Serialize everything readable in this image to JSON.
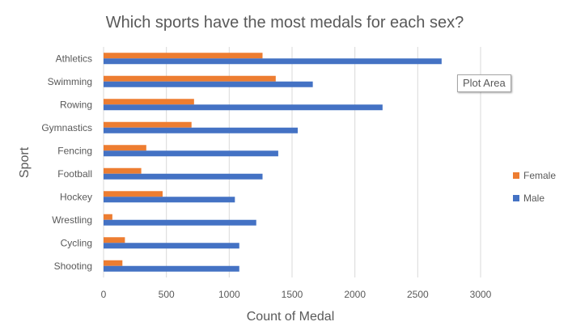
{
  "chart_data": {
    "type": "bar",
    "orientation": "horizontal",
    "title": "Which sports have the most medals for each sex?",
    "xlabel": "Count of Medal",
    "ylabel": "Sport",
    "categories": [
      "Athletics",
      "Swimming",
      "Rowing",
      "Gymnastics",
      "Fencing",
      "Football",
      "Hockey",
      "Wrestling",
      "Cycling",
      "Shooting"
    ],
    "series": [
      {
        "name": "Female",
        "color": "#ed7d31",
        "values": [
          1265,
          1370,
          720,
          700,
          340,
          300,
          470,
          70,
          170,
          150
        ]
      },
      {
        "name": "Male",
        "color": "#4472c4",
        "values": [
          2690,
          1665,
          2220,
          1545,
          1390,
          1265,
          1045,
          1215,
          1080,
          1080
        ]
      }
    ],
    "xlim": [
      0,
      3000
    ],
    "xticks": [
      0,
      500,
      1000,
      1500,
      2000,
      2500,
      3000
    ],
    "grid": true,
    "legend_position": "right"
  },
  "tooltip": {
    "label": "Plot Area"
  },
  "colors": {
    "grid": "#d9d9d9",
    "text": "#595959"
  }
}
